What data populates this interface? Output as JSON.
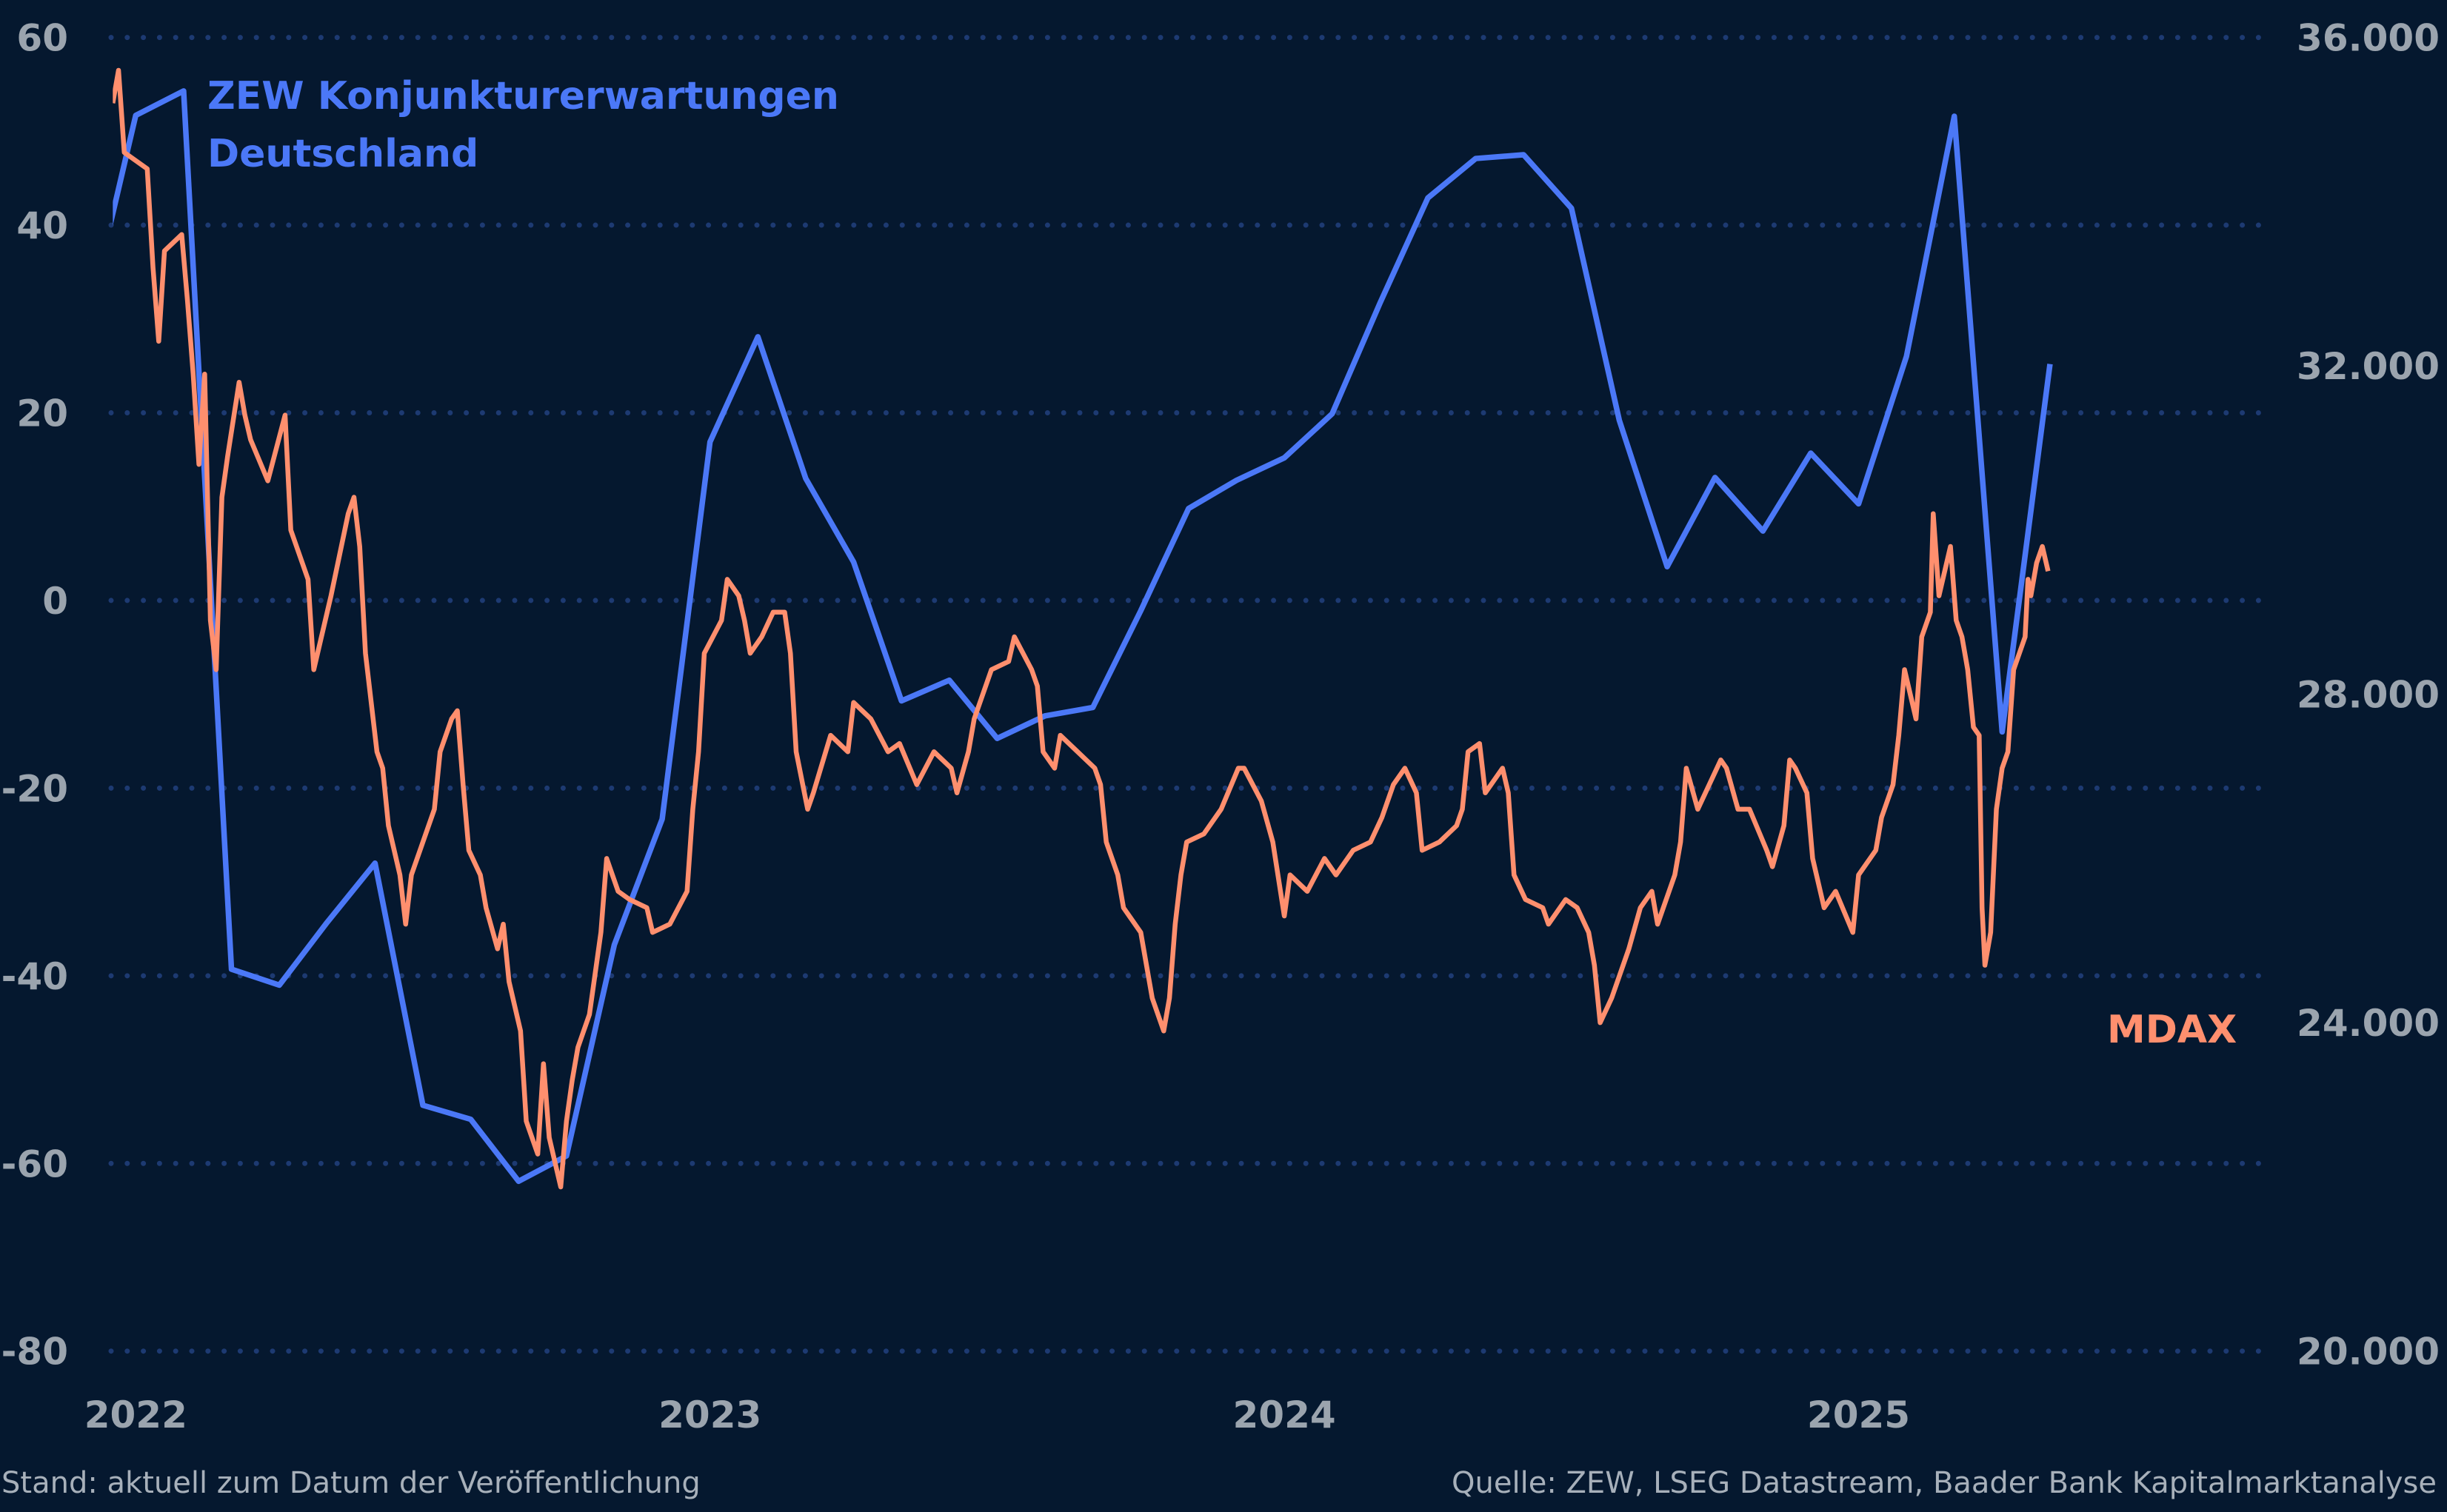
{
  "colors": {
    "background": "#05182f",
    "zew": "#4b78f7",
    "mdax": "#ff8f6e",
    "axis_text": "#9ba4ae",
    "grid": "#1d3a72"
  },
  "footer": {
    "left": "Stand: aktuell zum Datum der Veröffentlichung",
    "right": "Quelle: ZEW, LSEG Datastream, Baader Bank Kapitalmarktanalyse"
  },
  "chart_data": {
    "type": "line",
    "grid": "horizontal dotted",
    "x_ticks": [
      "2022",
      "2023",
      "2024",
      "2025"
    ],
    "xlim": [
      2021.96,
      2025.95
    ],
    "y_left": {
      "ticks": [
        "60",
        "40",
        "20",
        "0",
        "-20",
        "-40",
        "-60",
        "-80"
      ],
      "ylim": [
        -80,
        60
      ]
    },
    "y_right": {
      "ticks": [
        "36.000",
        "32.000",
        "28.000",
        "24.000",
        "20.000"
      ],
      "ylim": [
        20000,
        36000
      ]
    },
    "series": [
      {
        "name": "ZEW Konjunkturerwartungen Deutschland",
        "name_lines": [
          "ZEW Konjunkturerwartungen",
          "Deutschland"
        ],
        "axis": "left",
        "x": [
          "2021-12",
          "2022-01",
          "2022-02",
          "2022-03",
          "2022-04",
          "2022-05",
          "2022-06",
          "2022-07",
          "2022-08",
          "2022-09",
          "2022-10",
          "2022-11",
          "2022-12",
          "2023-01",
          "2023-02",
          "2023-03",
          "2023-04",
          "2023-05",
          "2023-06",
          "2023-07",
          "2023-08",
          "2023-09",
          "2023-10",
          "2023-11",
          "2023-12",
          "2024-01",
          "2024-02",
          "2024-03",
          "2024-04",
          "2024-05",
          "2024-06",
          "2024-07",
          "2024-08",
          "2024-09",
          "2024-10",
          "2024-11",
          "2024-12",
          "2025-01",
          "2025-02",
          "2025-03",
          "2025-04",
          "2025-05"
        ],
        "values": [
          29.9,
          51.7,
          54.3,
          -39.3,
          -41.0,
          -34.3,
          -28.0,
          -53.8,
          -55.3,
          -61.9,
          -59.2,
          -36.7,
          -23.3,
          16.9,
          28.1,
          13.0,
          4.1,
          -10.7,
          -8.5,
          -14.7,
          -12.3,
          -11.4,
          -1.1,
          9.8,
          12.8,
          15.2,
          19.9,
          31.7,
          42.9,
          47.1,
          47.5,
          41.8,
          19.2,
          3.6,
          13.1,
          7.4,
          15.7,
          10.3,
          26.0,
          51.6,
          -14.0,
          25.2
        ]
      },
      {
        "name": "MDAX",
        "axis": "right",
        "x": [
          2021.96,
          2021.97,
          2021.98,
          2022.02,
          2022.03,
          2022.04,
          2022.05,
          2022.08,
          2022.09,
          2022.1,
          2022.11,
          2022.12,
          2022.13,
          2022.14,
          2022.15,
          2022.16,
          2022.18,
          2022.19,
          2022.2,
          2022.23,
          2022.26,
          2022.27,
          2022.3,
          2022.31,
          2022.34,
          2022.37,
          2022.38,
          2022.39,
          2022.4,
          2022.42,
          2022.43,
          2022.44,
          2022.46,
          2022.47,
          2022.48,
          2022.5,
          2022.52,
          2022.53,
          2022.55,
          2022.56,
          2022.57,
          2022.58,
          2022.6,
          2022.61,
          2022.63,
          2022.64,
          2022.65,
          2022.67,
          2022.68,
          2022.7,
          2022.71,
          2022.72,
          2022.74,
          2022.75,
          2022.76,
          2022.77,
          2022.79,
          2022.81,
          2022.82,
          2022.84,
          2022.86,
          2022.89,
          2022.9,
          2022.93,
          2022.96,
          2022.97,
          2022.98,
          2022.99,
          2023.02,
          2023.03,
          2023.05,
          2023.06,
          2023.07,
          2023.09,
          2023.11,
          2023.13,
          2023.14,
          2023.15,
          2023.17,
          2023.18,
          2023.21,
          2023.24,
          2023.25,
          2023.28,
          2023.31,
          2023.33,
          2023.36,
          2023.39,
          2023.42,
          2023.43,
          2023.45,
          2023.46,
          2023.49,
          2023.52,
          2023.53,
          2023.56,
          2023.57,
          2023.58,
          2023.6,
          2023.61,
          2023.64,
          2023.67,
          2023.68,
          2023.69,
          2023.71,
          2023.72,
          2023.75,
          2023.77,
          2023.79,
          2023.8,
          2023.81,
          2023.82,
          2023.83,
          2023.86,
          2023.89,
          2023.92,
          2023.93,
          2023.96,
          2023.98,
          2024.0,
          2024.01,
          2024.04,
          2024.07,
          2024.09,
          2024.12,
          2024.15,
          2024.17,
          2024.19,
          2024.21,
          2024.23,
          2024.24,
          2024.27,
          2024.3,
          2024.31,
          2024.32,
          2024.34,
          2024.35,
          2024.38,
          2024.39,
          2024.4,
          2024.42,
          2024.45,
          2024.46,
          2024.49,
          2024.51,
          2024.53,
          2024.54,
          2024.55,
          2024.57,
          2024.6,
          2024.62,
          2024.64,
          2024.65,
          2024.68,
          2024.69,
          2024.7,
          2024.72,
          2024.74,
          2024.76,
          2024.77,
          2024.79,
          2024.81,
          2024.84,
          2024.85,
          2024.87,
          2024.88,
          2024.89,
          2024.91,
          2024.92,
          2024.94,
          2024.96,
          2024.99,
          2025.0,
          2025.03,
          2025.04,
          2025.06,
          2025.07,
          2025.08,
          2025.1,
          2025.11,
          2025.125,
          2025.13,
          2025.14,
          2025.16,
          2025.17,
          2025.18,
          2025.19,
          2025.2,
          2025.21,
          2025.215,
          2025.22,
          2025.23,
          2025.24,
          2025.25,
          2025.26,
          2025.27,
          2025.29,
          2025.295,
          2025.3,
          2025.31,
          2025.32,
          2025.33
        ],
        "values": [
          35200,
          35600,
          34600,
          34400,
          33200,
          32300,
          33400,
          33600,
          32800,
          31900,
          30800,
          31900,
          28900,
          28300,
          30400,
          30900,
          31800,
          31400,
          31100,
          30600,
          31400,
          30000,
          29400,
          28300,
          29200,
          30200,
          30400,
          29800,
          28500,
          27300,
          27100,
          26400,
          25800,
          25200,
          25800,
          26200,
          26600,
          27300,
          27700,
          27800,
          26900,
          26100,
          25800,
          25400,
          24900,
          25200,
          24500,
          23900,
          22800,
          22400,
          23500,
          22600,
          22000,
          22800,
          23300,
          23700,
          24100,
          25100,
          26000,
          25600,
          25500,
          25400,
          25100,
          25200,
          25600,
          26600,
          27300,
          28500,
          28900,
          29400,
          29200,
          28900,
          28500,
          28700,
          29000,
          29000,
          28500,
          27300,
          26600,
          26800,
          27500,
          27300,
          27900,
          27700,
          27300,
          27400,
          26900,
          27300,
          27100,
          26800,
          27300,
          27700,
          28300,
          28400,
          28700,
          28300,
          28100,
          27300,
          27100,
          27500,
          27300,
          27100,
          26900,
          26200,
          25800,
          25400,
          25100,
          24300,
          23900,
          24300,
          25200,
          25800,
          26200,
          26300,
          26600,
          27100,
          27100,
          26700,
          26200,
          25300,
          25800,
          25600,
          26000,
          25800,
          26100,
          26200,
          26500,
          26900,
          27100,
          26800,
          26100,
          26200,
          26400,
          26600,
          27300,
          27400,
          26800,
          27100,
          26800,
          25800,
          25500,
          25400,
          25200,
          25500,
          25400,
          25100,
          24700,
          24000,
          24300,
          24900,
          25400,
          25600,
          25200,
          25800,
          26200,
          27100,
          26600,
          26900,
          27200,
          27100,
          26600,
          26600,
          26100,
          25900,
          26400,
          27200,
          27100,
          26800,
          26000,
          25400,
          25600,
          25100,
          25800,
          26100,
          26500,
          26900,
          27500,
          28300,
          27700,
          28700,
          29000,
          30200,
          29200,
          29800,
          28900,
          28700,
          28300,
          27600,
          27500,
          25400,
          24700,
          25100,
          26600,
          27100,
          27300,
          28300,
          28700,
          29400,
          29200,
          29600,
          29800,
          29500
        ]
      }
    ]
  }
}
